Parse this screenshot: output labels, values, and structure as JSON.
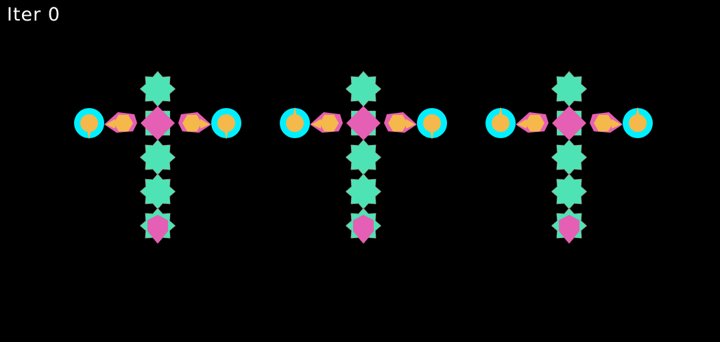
{
  "hud": {
    "iteration_label": "Iter 0"
  },
  "colors": {
    "background": "#000000",
    "hud_text": "#ffffff",
    "body_octagram": "#4ee3b4",
    "joint_diamond": "#e55fb4",
    "foot_orb": "#e55fb4",
    "arm_hexagon": "#f5b84a",
    "arm_outline": "#e55fb4",
    "hand_ring": "#00f0ff",
    "hand_core": "#f5b84a",
    "seam_dots": "#e0203a"
  },
  "scene": {
    "creature_count": 3,
    "creature_layout": [
      "torso-head",
      "torso-core",
      "torso-mid",
      "torso-low",
      "foot",
      "left-arm",
      "right-arm",
      "left-hand",
      "right-hand"
    ]
  }
}
